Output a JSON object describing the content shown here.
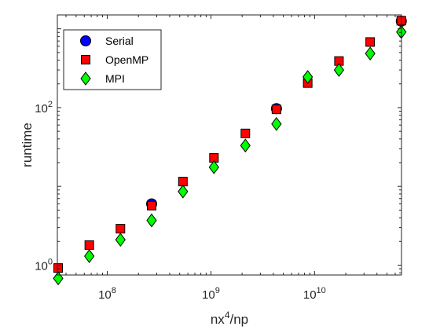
{
  "chart_data": {
    "type": "scatter",
    "xlabel": "nx^4/np",
    "ylabel": "runtime",
    "xscale": "log",
    "yscale": "log",
    "xlim": [
      33000000.0,
      69000000000.0
    ],
    "ylim": [
      0.75,
      1500
    ],
    "grid": false,
    "legend_position": "top-left",
    "x_ticks": [
      {
        "value": 100000000.0,
        "base": "10",
        "exp": "8"
      },
      {
        "value": 1000000000.0,
        "base": "10",
        "exp": "9"
      },
      {
        "value": 10000000000.0,
        "base": "10",
        "exp": "10"
      }
    ],
    "y_ticks": [
      {
        "value": 1,
        "base": "10",
        "exp": "0"
      },
      {
        "value": 100,
        "base": "10",
        "exp": "2"
      }
    ],
    "series": [
      {
        "name": "Serial",
        "marker": "circle",
        "color": "#0000ff",
        "points": [
          {
            "x": 268000000.0,
            "y": 6.0
          },
          {
            "x": 4290000000.0,
            "y": 97
          },
          {
            "x": 68700000000.0,
            "y": 1250
          }
        ]
      },
      {
        "name": "OpenMP",
        "marker": "square",
        "color": "#ff0000",
        "points": [
          {
            "x": 33600000.0,
            "y": 0.92
          },
          {
            "x": 67100000.0,
            "y": 1.8
          },
          {
            "x": 134000000.0,
            "y": 2.9
          },
          {
            "x": 268000000.0,
            "y": 5.7
          },
          {
            "x": 537000000.0,
            "y": 11.5
          },
          {
            "x": 1070000000.0,
            "y": 23
          },
          {
            "x": 2150000000.0,
            "y": 47
          },
          {
            "x": 4290000000.0,
            "y": 95
          },
          {
            "x": 8590000000.0,
            "y": 205
          },
          {
            "x": 17200000000.0,
            "y": 390
          },
          {
            "x": 34400000000.0,
            "y": 680
          },
          {
            "x": 68700000000.0,
            "y": 1270
          }
        ]
      },
      {
        "name": "MPI",
        "marker": "diamond",
        "color": "#00ff00",
        "points": [
          {
            "x": 33600000.0,
            "y": 0.68
          },
          {
            "x": 67100000.0,
            "y": 1.3
          },
          {
            "x": 134000000.0,
            "y": 2.1
          },
          {
            "x": 268000000.0,
            "y": 3.7
          },
          {
            "x": 537000000.0,
            "y": 8.6
          },
          {
            "x": 1070000000.0,
            "y": 17.5
          },
          {
            "x": 2150000000.0,
            "y": 33
          },
          {
            "x": 4290000000.0,
            "y": 62
          },
          {
            "x": 8590000000.0,
            "y": 245
          },
          {
            "x": 17200000000.0,
            "y": 300
          },
          {
            "x": 34400000000.0,
            "y": 485
          },
          {
            "x": 68700000000.0,
            "y": 910
          }
        ]
      }
    ]
  }
}
